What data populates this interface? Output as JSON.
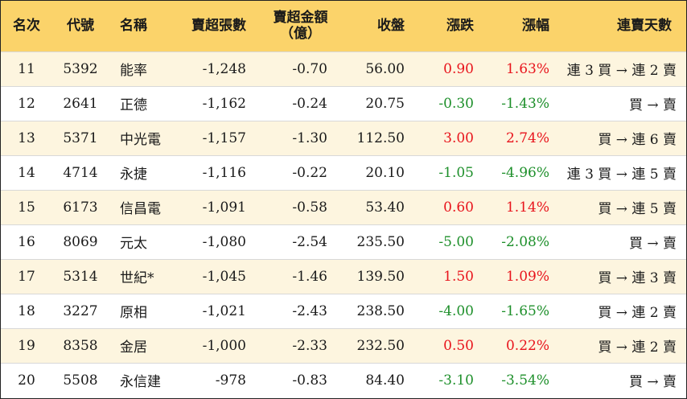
{
  "headers": {
    "rank": "名次",
    "code": "代號",
    "name": "名稱",
    "net_sell_lots": "賣超張數",
    "net_sell_amount_line1": "賣超金額",
    "net_sell_amount_line2": "（億）",
    "close": "收盤",
    "change": "漲跌",
    "change_pct": "漲幅",
    "streak": "連賣天數"
  },
  "rows": [
    {
      "rank": "11",
      "code": "5392",
      "name": "能率",
      "lots": "-1,248",
      "amount": "-0.70",
      "close": "56.00",
      "change": "0.90",
      "pct": "1.63%",
      "dir": "up",
      "streak": "連 3 買 → 連 2 賣"
    },
    {
      "rank": "12",
      "code": "2641",
      "name": "正德",
      "lots": "-1,162",
      "amount": "-0.24",
      "close": "20.75",
      "change": "-0.30",
      "pct": "-1.43%",
      "dir": "down",
      "streak": "買 → 賣"
    },
    {
      "rank": "13",
      "code": "5371",
      "name": "中光電",
      "lots": "-1,157",
      "amount": "-1.30",
      "close": "112.50",
      "change": "3.00",
      "pct": "2.74%",
      "dir": "up",
      "streak": "買 → 連 6 賣"
    },
    {
      "rank": "14",
      "code": "4714",
      "name": "永捷",
      "lots": "-1,116",
      "amount": "-0.22",
      "close": "20.10",
      "change": "-1.05",
      "pct": "-4.96%",
      "dir": "down",
      "streak": "連 3 買 → 連 5 賣"
    },
    {
      "rank": "15",
      "code": "6173",
      "name": "信昌電",
      "lots": "-1,091",
      "amount": "-0.58",
      "close": "53.40",
      "change": "0.60",
      "pct": "1.14%",
      "dir": "up",
      "streak": "買 → 連 5 賣"
    },
    {
      "rank": "16",
      "code": "8069",
      "name": "元太",
      "lots": "-1,080",
      "amount": "-2.54",
      "close": "235.50",
      "change": "-5.00",
      "pct": "-2.08%",
      "dir": "down",
      "streak": "買 → 賣"
    },
    {
      "rank": "17",
      "code": "5314",
      "name": "世紀*",
      "lots": "-1,045",
      "amount": "-1.46",
      "close": "139.50",
      "change": "1.50",
      "pct": "1.09%",
      "dir": "up",
      "streak": "買 → 連 3 賣"
    },
    {
      "rank": "18",
      "code": "3227",
      "name": "原相",
      "lots": "-1,021",
      "amount": "-2.43",
      "close": "238.50",
      "change": "-4.00",
      "pct": "-1.65%",
      "dir": "down",
      "streak": "買 → 連 2 賣"
    },
    {
      "rank": "19",
      "code": "8358",
      "name": "金居",
      "lots": "-1,000",
      "amount": "-2.33",
      "close": "232.50",
      "change": "0.50",
      "pct": "0.22%",
      "dir": "up",
      "streak": "買 → 連 2 賣"
    },
    {
      "rank": "20",
      "code": "5508",
      "name": "永信建",
      "lots": "-978",
      "amount": "-0.83",
      "close": "84.40",
      "change": "-3.10",
      "pct": "-3.54%",
      "dir": "down",
      "streak": "買 → 賣"
    }
  ],
  "colors": {
    "header_bg": "#fbd36a",
    "odd_row_bg": "#fdf5df",
    "up": "#e8141c",
    "down": "#1d8f2a"
  }
}
